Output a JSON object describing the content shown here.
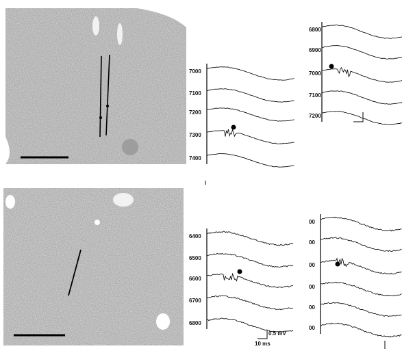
{
  "panels": [
    {
      "depth_labels": [
        "7000",
        "7100",
        "7200",
        "7300",
        "7400"
      ]
    },
    {
      "depth_labels": [
        "6800",
        "6900",
        "7000",
        "7100",
        "7200"
      ]
    },
    {
      "depth_labels": [
        "6400",
        "6500",
        "6600",
        "6700",
        "6800"
      ]
    },
    {
      "depth_labels": [
        "00",
        "00",
        "00",
        "00",
        "00",
        "00"
      ]
    }
  ],
  "scale_bar": {
    "voltage": "0.5 mV",
    "time": "10 ms"
  }
}
